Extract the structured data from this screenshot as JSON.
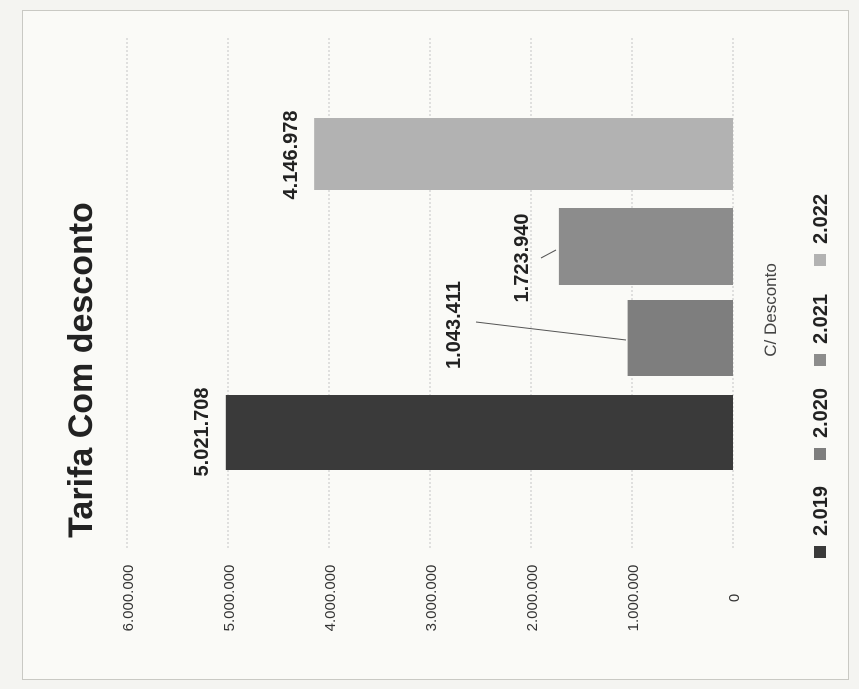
{
  "chart_data": {
    "type": "bar",
    "title": "Tarifa Com desconto",
    "xlabel": "C/ Desconto",
    "ylabel": "",
    "categories": [
      "C/ Desconto"
    ],
    "series": [
      {
        "name": "2.019",
        "values": [
          5021708
        ],
        "label": "5.021.708",
        "color": "#3a3a3a"
      },
      {
        "name": "2.020",
        "values": [
          1043411
        ],
        "label": "1.043.411",
        "color": "#7e7e7e"
      },
      {
        "name": "2.021",
        "values": [
          1723940
        ],
        "label": "1.723.940",
        "color": "#8c8c8c"
      },
      {
        "name": "2.022",
        "values": [
          4146978
        ],
        "label": "4.146.978",
        "color": "#b2b2b2"
      }
    ],
    "ylim": [
      0,
      6000000
    ],
    "ticks": [
      "0",
      "1.000.000",
      "2.000.000",
      "3.000.000",
      "4.000.000",
      "5.000.000",
      "6.000.000"
    ],
    "grid": true,
    "legend": "bottom"
  }
}
